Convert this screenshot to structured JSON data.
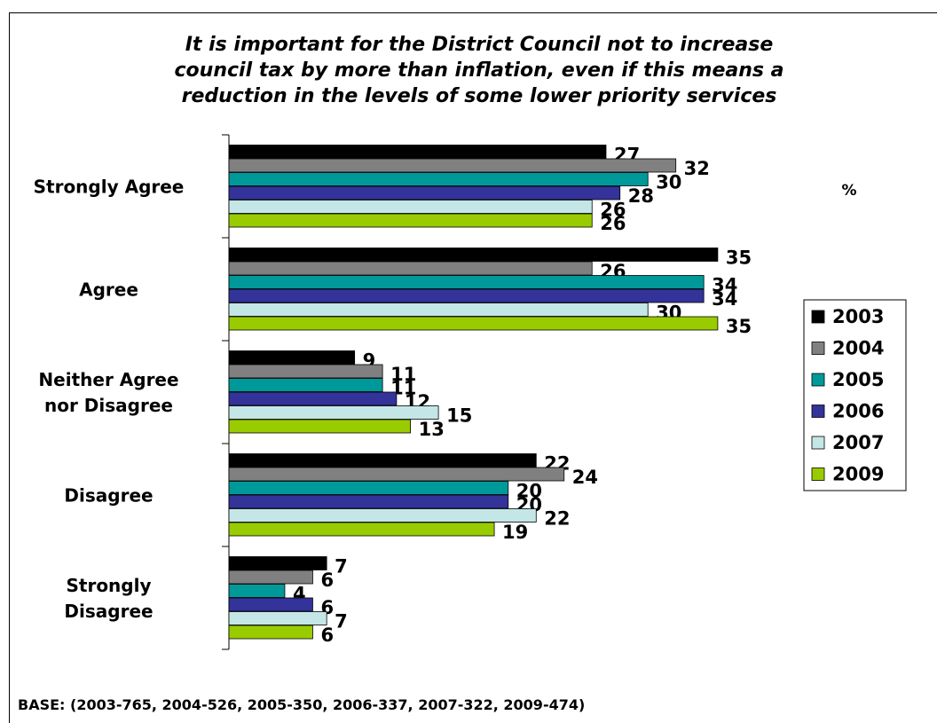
{
  "chart_data": {
    "type": "bar",
    "orientation": "horizontal",
    "title": "It is important for the District Council not to increase council tax by more than inflation, even if this means a reduction in the levels of some lower priority services",
    "unit_label": "%",
    "categories": [
      "Strongly Agree",
      "Agree",
      "Neither Agree nor Disagree",
      "Disagree",
      "Strongly Disagree"
    ],
    "series": [
      {
        "name": "2003",
        "color": "#000000",
        "values": [
          27,
          35,
          9,
          22,
          7
        ]
      },
      {
        "name": "2004",
        "color": "#808080",
        "values": [
          32,
          26,
          11,
          24,
          6
        ]
      },
      {
        "name": "2005",
        "color": "#009999",
        "values": [
          30,
          34,
          11,
          20,
          4
        ]
      },
      {
        "name": "2006",
        "color": "#333399",
        "values": [
          28,
          34,
          12,
          20,
          6
        ]
      },
      {
        "name": "2007",
        "color": "#c4e6e6",
        "values": [
          26,
          30,
          15,
          22,
          7
        ]
      },
      {
        "name": "2009",
        "color": "#99cc00",
        "values": [
          26,
          35,
          13,
          19,
          6
        ]
      }
    ],
    "xlim": [
      0,
      40
    ],
    "legend": "right",
    "note": "BASE: (2003-765, 2004-526, 2005-350, 2006-337, 2007-322, 2009-474)"
  }
}
